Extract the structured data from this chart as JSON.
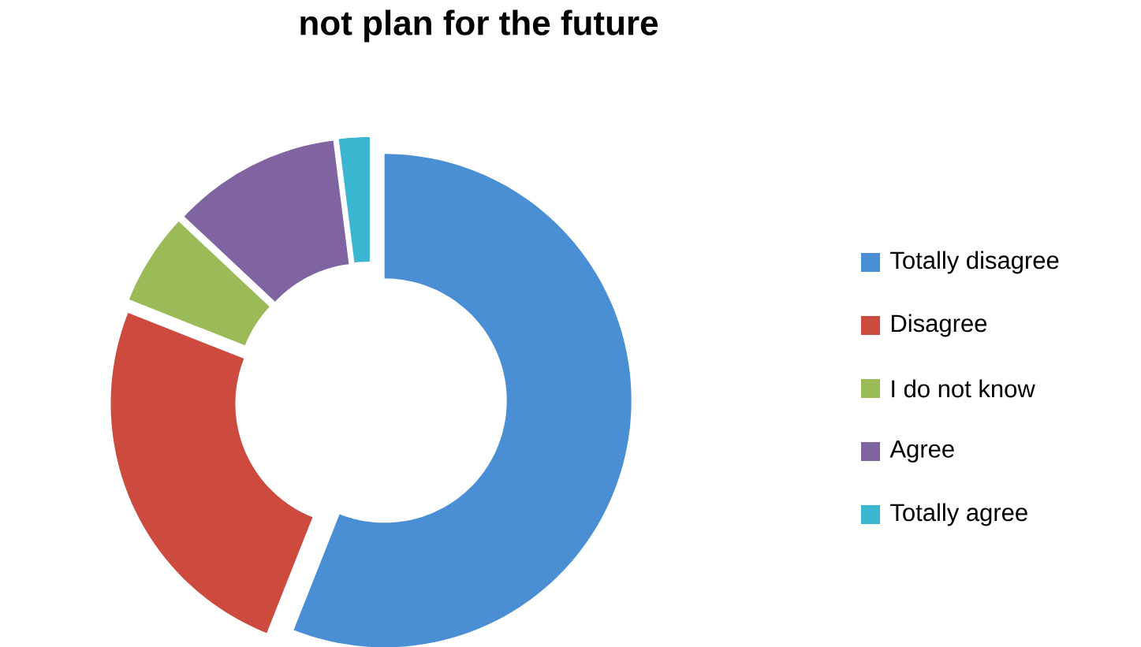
{
  "chart_data": {
    "type": "donut",
    "title": "not plan for the future",
    "categories": [
      "Totally disagree",
      "Disagree",
      "I do not know",
      "Agree",
      "Totally agree"
    ],
    "values": [
      56,
      25,
      6,
      11,
      2
    ],
    "colors": [
      "#4a8fd4",
      "#cc4a3e",
      "#9bbb59",
      "#8064a2",
      "#3bb6d0"
    ],
    "legend": "right"
  }
}
